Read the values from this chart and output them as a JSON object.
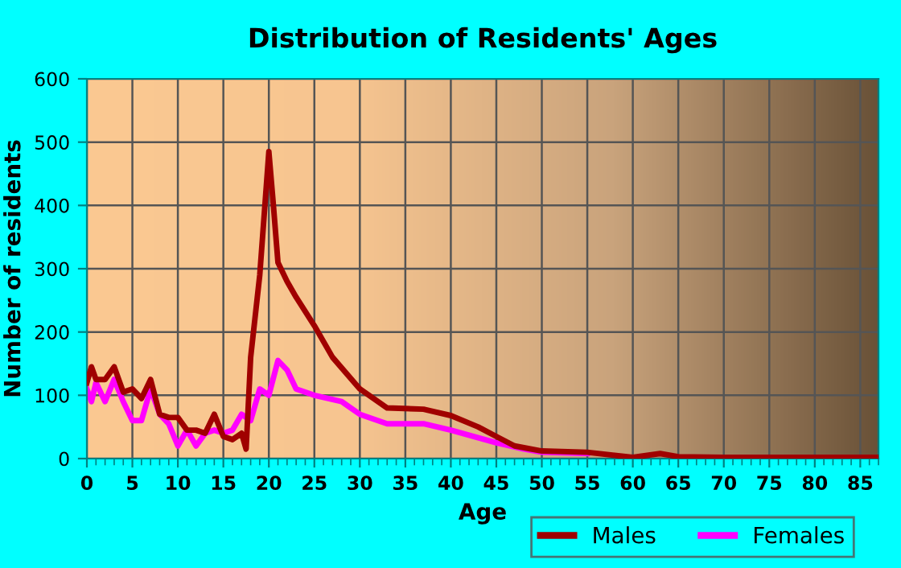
{
  "chart_data": {
    "type": "line",
    "title": "Distribution of Residents' Ages",
    "xlabel": "Age",
    "ylabel": "Number of residents",
    "xlim": [
      0,
      87
    ],
    "xticks": [
      0,
      5,
      10,
      15,
      20,
      25,
      30,
      35,
      40,
      45,
      50,
      55,
      60,
      65,
      70,
      75,
      80,
      85
    ],
    "ylim": [
      0,
      600
    ],
    "yticks": [
      0,
      100,
      200,
      300,
      400,
      500,
      600
    ],
    "grid": true,
    "legend": "bottom right",
    "series": [
      {
        "name": "Males",
        "color": "#a00000",
        "x": [
          0,
          0.5,
          1,
          2,
          3,
          4,
          5,
          6,
          7,
          8,
          9,
          10,
          11,
          12,
          13,
          14,
          15,
          16,
          17,
          17.5,
          18,
          19,
          20,
          20.5,
          21,
          22,
          23,
          25,
          27,
          30,
          33,
          37,
          40,
          43,
          45,
          47,
          50,
          55,
          60,
          63,
          65,
          70,
          87
        ],
        "values": [
          120,
          145,
          125,
          125,
          145,
          105,
          110,
          95,
          125,
          70,
          65,
          65,
          45,
          45,
          40,
          70,
          35,
          30,
          40,
          15,
          160,
          290,
          485,
          400,
          310,
          280,
          255,
          210,
          160,
          110,
          80,
          78,
          68,
          50,
          35,
          20,
          12,
          10,
          2,
          8,
          3,
          2,
          2
        ]
      },
      {
        "name": "Females",
        "color": "#ff00ff",
        "x": [
          0,
          0.5,
          1,
          2,
          3,
          4,
          5,
          6,
          7,
          8,
          9,
          10,
          11,
          12,
          13,
          14,
          15,
          16,
          17,
          18,
          19,
          20,
          21,
          22,
          23,
          25,
          28,
          30,
          33,
          37,
          40,
          45,
          48,
          50,
          55
        ],
        "values": [
          110,
          90,
          120,
          90,
          125,
          90,
          60,
          60,
          110,
          70,
          55,
          20,
          45,
          20,
          40,
          45,
          40,
          45,
          70,
          60,
          110,
          100,
          155,
          140,
          110,
          100,
          90,
          70,
          55,
          55,
          45,
          25,
          15,
          10,
          8
        ]
      }
    ]
  }
}
